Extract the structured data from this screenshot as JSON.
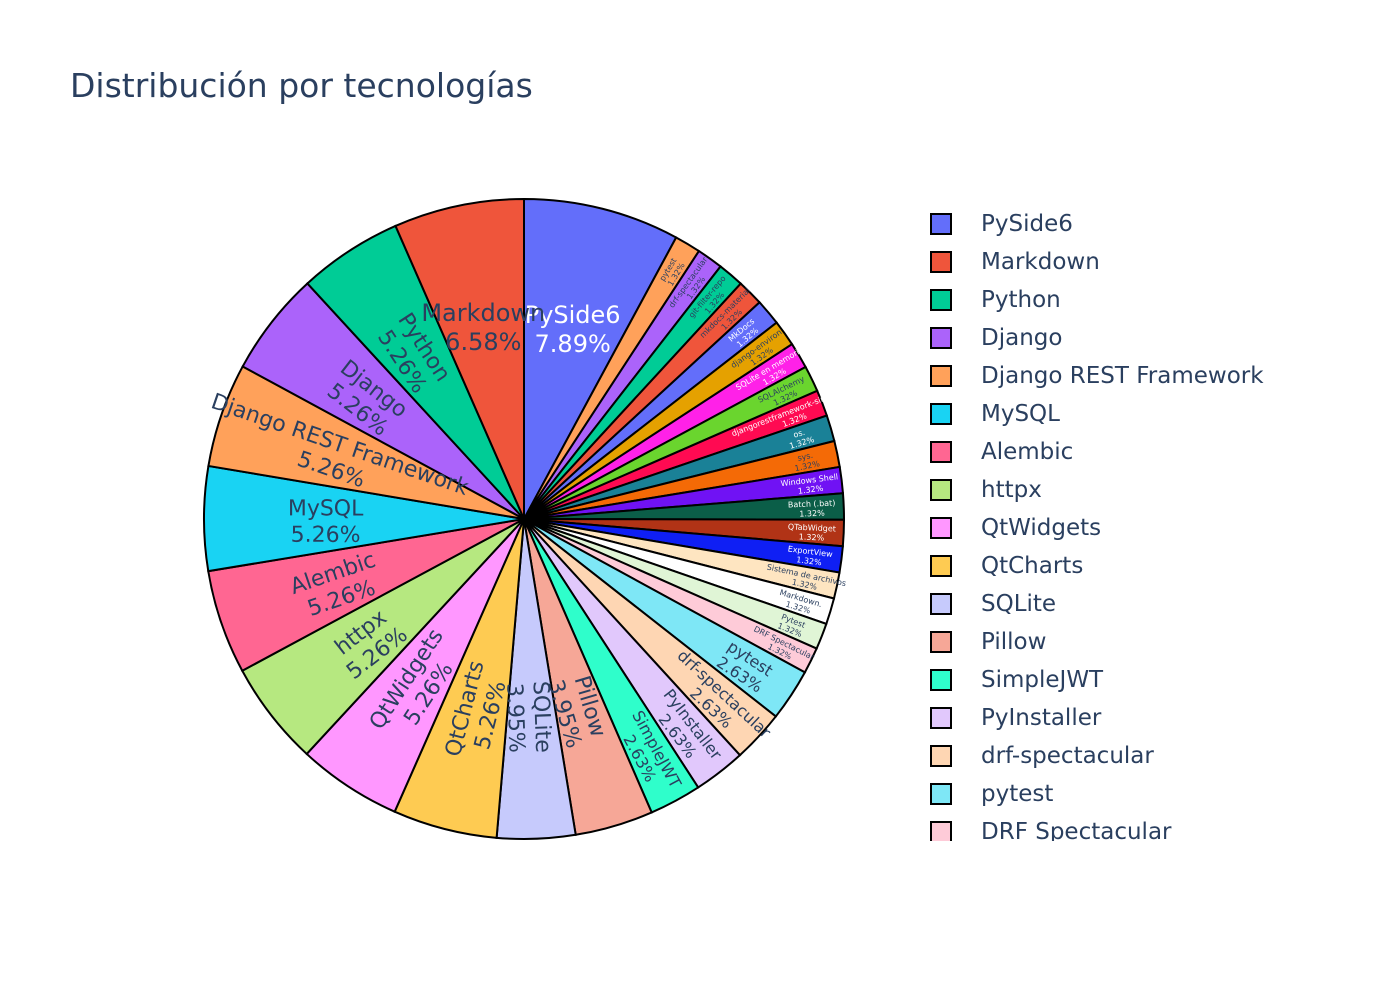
{
  "chart_data": {
    "type": "pie",
    "title": "Distribución por tecnologías",
    "slices": [
      {
        "label": "PySide6",
        "value": 7.89,
        "color": "#636efa"
      },
      {
        "label": "pytest",
        "value": 1.32,
        "color": "#ffa15a"
      },
      {
        "label": "drf-spectacular",
        "value": 1.32,
        "color": "#ab63fa"
      },
      {
        "label": "git-filter-repo",
        "value": 1.32,
        "color": "#00cc96"
      },
      {
        "label": "mkdocs-material",
        "value": 1.32,
        "color": "#ef553b"
      },
      {
        "label": "MkDocs",
        "value": 1.32,
        "color": "#636efa"
      },
      {
        "label": "django-environ",
        "value": 1.32,
        "color": "#e5a100"
      },
      {
        "label": "SQLite en memoria",
        "value": 1.32,
        "color": "#ff21e8"
      },
      {
        "label": "SQLAlchemy",
        "value": 1.32,
        "color": "#6ad52e"
      },
      {
        "label": "djangorestframework-simplejwt",
        "value": 1.32,
        "color": "#ff0a52"
      },
      {
        "label": "os.",
        "value": 1.32,
        "color": "#1a8197"
      },
      {
        "label": "sys.",
        "value": 1.32,
        "color": "#f46a06"
      },
      {
        "label": "Windows Shell",
        "value": 1.32,
        "color": "#7012f4"
      },
      {
        "label": "Batch (.bat)",
        "value": 1.32,
        "color": "#0b5e48"
      },
      {
        "label": "QTabWidget",
        "value": 1.32,
        "color": "#b13316"
      },
      {
        "label": "ExportView",
        "value": 1.32,
        "color": "#0f1ff4"
      },
      {
        "label": "Sistema de archivos",
        "value": 1.32,
        "color": "#fee5c1"
      },
      {
        "label": "Markdown.",
        "value": 1.32,
        "color": "#ffffff"
      },
      {
        "label": "Pytest",
        "value": 1.32,
        "color": "#e0f5d6"
      },
      {
        "label": "DRF Spectacular",
        "value": 1.32,
        "color": "#fecbd8"
      },
      {
        "label": "pytest",
        "value": 2.63,
        "color": "#7ee7f6"
      },
      {
        "label": "drf-spectacular",
        "value": 2.63,
        "color": "#fed6b3"
      },
      {
        "label": "PyInstaller",
        "value": 2.63,
        "color": "#e1c8fc"
      },
      {
        "label": "SimpleJWT",
        "value": 2.63,
        "color": "#2ffecb"
      },
      {
        "label": "Pillow",
        "value": 3.95,
        "color": "#f6a797"
      },
      {
        "label": "SQLite",
        "value": 3.95,
        "color": "#c6cafc"
      },
      {
        "label": "QtCharts",
        "value": 5.26,
        "color": "#fecb52"
      },
      {
        "label": "QtWidgets",
        "value": 5.26,
        "color": "#ff97ff"
      },
      {
        "label": "httpx",
        "value": 5.26,
        "color": "#b6e880"
      },
      {
        "label": "Alembic",
        "value": 5.26,
        "color": "#ff6692"
      },
      {
        "label": "MySQL",
        "value": 5.26,
        "color": "#19d3f3"
      },
      {
        "label": "Django REST Framework",
        "value": 5.26,
        "color": "#ffa15a"
      },
      {
        "label": "Django",
        "value": 5.26,
        "color": "#ab63fa"
      },
      {
        "label": "Python",
        "value": 5.26,
        "color": "#00cc96"
      },
      {
        "label": "Markdown",
        "value": 6.58,
        "color": "#ef553b"
      }
    ],
    "legend": {
      "placement": "right",
      "entries": [
        {
          "label": "PySide6",
          "color": "#636efa"
        },
        {
          "label": "Markdown",
          "color": "#ef553b"
        },
        {
          "label": "Python",
          "color": "#00cc96"
        },
        {
          "label": "Django",
          "color": "#ab63fa"
        },
        {
          "label": "Django REST Framework",
          "color": "#ffa15a"
        },
        {
          "label": "MySQL",
          "color": "#19d3f3"
        },
        {
          "label": "Alembic",
          "color": "#ff6692"
        },
        {
          "label": "httpx",
          "color": "#b6e880"
        },
        {
          "label": "QtWidgets",
          "color": "#ff97ff"
        },
        {
          "label": "QtCharts",
          "color": "#fecb52"
        },
        {
          "label": "SQLite",
          "color": "#c6cafc"
        },
        {
          "label": "Pillow",
          "color": "#f6a797"
        },
        {
          "label": "SimpleJWT",
          "color": "#2ffecb"
        },
        {
          "label": "PyInstaller",
          "color": "#e1c8fc"
        },
        {
          "label": "drf-spectacular",
          "color": "#fed6b3"
        },
        {
          "label": "pytest",
          "color": "#7ee7f6"
        },
        {
          "label": "DRF Spectacular",
          "color": "#fecbd8"
        }
      ]
    }
  }
}
